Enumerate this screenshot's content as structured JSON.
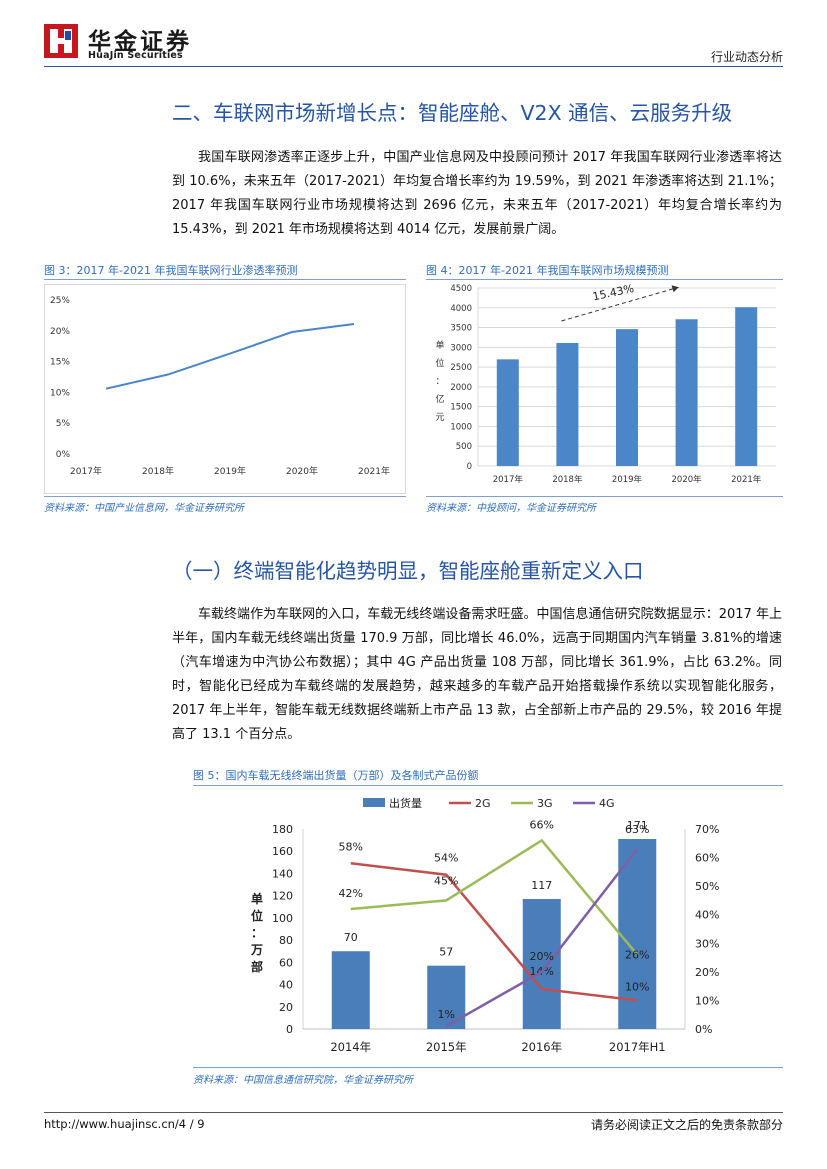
{
  "header": {
    "logo_cn": "华金证券",
    "logo_en": "HuaJin Securities",
    "report_type": "行业动态分析"
  },
  "section1": {
    "heading": "二、车联网市场新增长点：智能座舱、V2X 通信、云服务升级",
    "paragraph": "我国车联网渗透率正逐步上升，中国产业信息网及中投顾问预计 2017 年我国车联网行业渗透率将达到 10.6%，未来五年（2017-2021）年均复合增长率约为 19.59%，到 2021 年渗透率将达到 21.1%；2017 年我国车联网行业市场规模将达到 2696 亿元，未来五年（2017-2021）年均复合增长率约为 15.43%，到 2021 年市场规模将达到 4014 亿元，发展前景广阔。"
  },
  "figure3": {
    "title": "图 3：2017 年-2021 年我国车联网行业渗透率预测",
    "source": "资料来源：中国产业信息网，华金证券研究所"
  },
  "figure4": {
    "title": "图 4：2017 年-2021 年我国车联网市场规模预测",
    "source": "资料来源：中投顾问，华金证券研究所"
  },
  "section2": {
    "heading": "（一）终端智能化趋势明显，智能座舱重新定义入口",
    "paragraph": "车载终端作为车联网的入口，车载无线终端设备需求旺盛。中国信息通信研究院数据显示：2017 年上半年，国内车载无线终端出货量 170.9 万部，同比增长 46.0%，远高于同期国内汽车销量 3.81%的增速（汽车增速为中汽协公布数据）；其中 4G 产品出货量 108 万部，同比增长 361.9%，占比 63.2%。同时，智能化已经成为车载终端的发展趋势，越来越多的车载产品开始搭载操作系统以实现智能化服务，2017 年上半年，智能车载无线数据终端新上市产品 13 款，占全部新上市产品的 29.5%，较 2016 年提高了 13.1 个百分点。"
  },
  "figure5": {
    "title": "图 5：国内车载无线终端出货量（万部）及各制式产品份额",
    "source": "资料来源：中国信息通信研究院，华金证券研究所"
  },
  "footer": {
    "url": "http://www.huajinsc.cn/4 / 9",
    "disclaimer": "请务必阅读正文之后的免责条款部分"
  },
  "chart_data": [
    {
      "type": "line",
      "x": [
        "2017年",
        "2018年",
        "2019年",
        "2020年",
        "2021年"
      ],
      "series": [
        {
          "values": [
            10.6,
            12.9,
            16.3,
            19.8,
            21.1
          ],
          "color": "#4a86c8"
        }
      ],
      "yticks": [
        "0%",
        "5%",
        "10%",
        "15%",
        "20%",
        "25%"
      ],
      "ylim": [
        0,
        25
      ],
      "grid": false
    },
    {
      "type": "bar",
      "categories": [
        "2017年",
        "2018年",
        "2019年",
        "2020年",
        "2021年"
      ],
      "values": [
        2696,
        3110,
        3460,
        3710,
        4014
      ],
      "color": "#4a86c8",
      "yticks": [
        "0",
        "500",
        "1000",
        "1500",
        "2000",
        "2500",
        "3000",
        "3500",
        "4000",
        "4500"
      ],
      "ylim": [
        0,
        4500
      ],
      "ylabel": "单位：亿元",
      "annotation": "15.43%",
      "grid": true
    },
    {
      "type": "bar",
      "categories": [
        "2014年",
        "2015年",
        "2016年",
        "2017年H1"
      ],
      "legend_position": "top",
      "series": [
        {
          "name": "出货量",
          "kind": "bar",
          "axis": "left",
          "values": [
            70,
            57,
            117,
            171
          ],
          "labels": [
            "70",
            "57",
            "117",
            "171"
          ],
          "color": "#4a7ebb"
        },
        {
          "name": "2G",
          "kind": "line",
          "axis": "right",
          "values": [
            58,
            54,
            14,
            10
          ],
          "labels": [
            "58%",
            "54%",
            "14%",
            "10%"
          ],
          "color": "#c0504d"
        },
        {
          "name": "3G",
          "kind": "line",
          "axis": "right",
          "values": [
            42,
            45,
            66,
            26
          ],
          "labels": [
            "42%",
            "45%",
            "66%",
            "26%"
          ],
          "color": "#9bbb59"
        },
        {
          "name": "4G",
          "kind": "line",
          "axis": "right",
          "values": [
            null,
            1,
            20,
            63
          ],
          "labels": [
            "",
            "1%",
            "20%",
            "63%"
          ],
          "color": "#7f5fa6"
        }
      ],
      "yticks_left": [
        "0",
        "20",
        "40",
        "60",
        "80",
        "100",
        "120",
        "140",
        "160",
        "180"
      ],
      "ylim_left": [
        0,
        180
      ],
      "yticks_right": [
        "0%",
        "10%",
        "20%",
        "30%",
        "40%",
        "50%",
        "60%",
        "70%"
      ],
      "ylim_right": [
        0,
        70
      ],
      "ylabel": "单位：万部",
      "grid": false
    }
  ]
}
